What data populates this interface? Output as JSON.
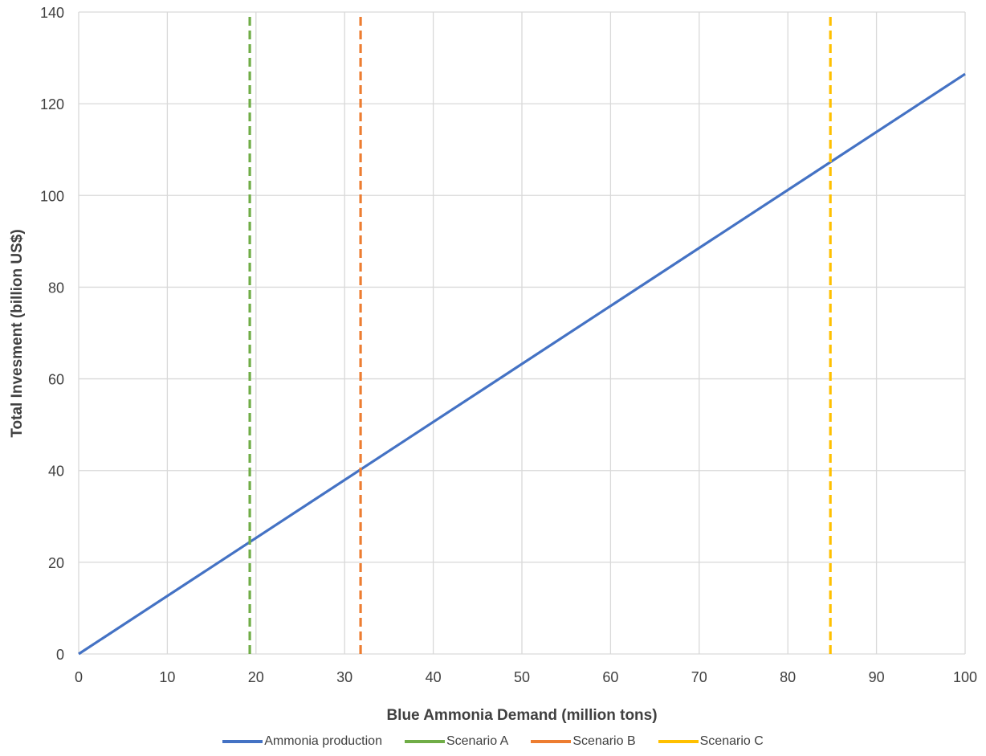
{
  "chart_data": {
    "type": "line",
    "xlabel": "Blue Ammonia Demand (million tons)",
    "ylabel": "Total Invesment (billion US$)",
    "xlim": [
      0,
      100
    ],
    "ylim": [
      0,
      140
    ],
    "x_ticks": [
      0,
      10,
      20,
      30,
      40,
      50,
      60,
      70,
      80,
      90,
      100
    ],
    "y_ticks": [
      0,
      20,
      40,
      60,
      80,
      100,
      120,
      140
    ],
    "grid": true,
    "legend_position": "bottom",
    "series": [
      {
        "name": "Ammonia production",
        "color": "#4472C4",
        "style": "solid",
        "x": [
          0,
          100
        ],
        "y": [
          0,
          126.5
        ]
      },
      {
        "name": "Scenario A",
        "color": "#70AD47",
        "style": "dashed",
        "x": [
          19.3,
          19.3
        ],
        "y": [
          0,
          140
        ]
      },
      {
        "name": "Scenario B",
        "color": "#ED7D31",
        "style": "dashed",
        "x": [
          31.8,
          31.8
        ],
        "y": [
          0,
          140
        ]
      },
      {
        "name": "Scenario C",
        "color": "#FFC000",
        "style": "dashed",
        "x": [
          84.8,
          84.8
        ],
        "y": [
          0,
          140
        ]
      }
    ]
  }
}
